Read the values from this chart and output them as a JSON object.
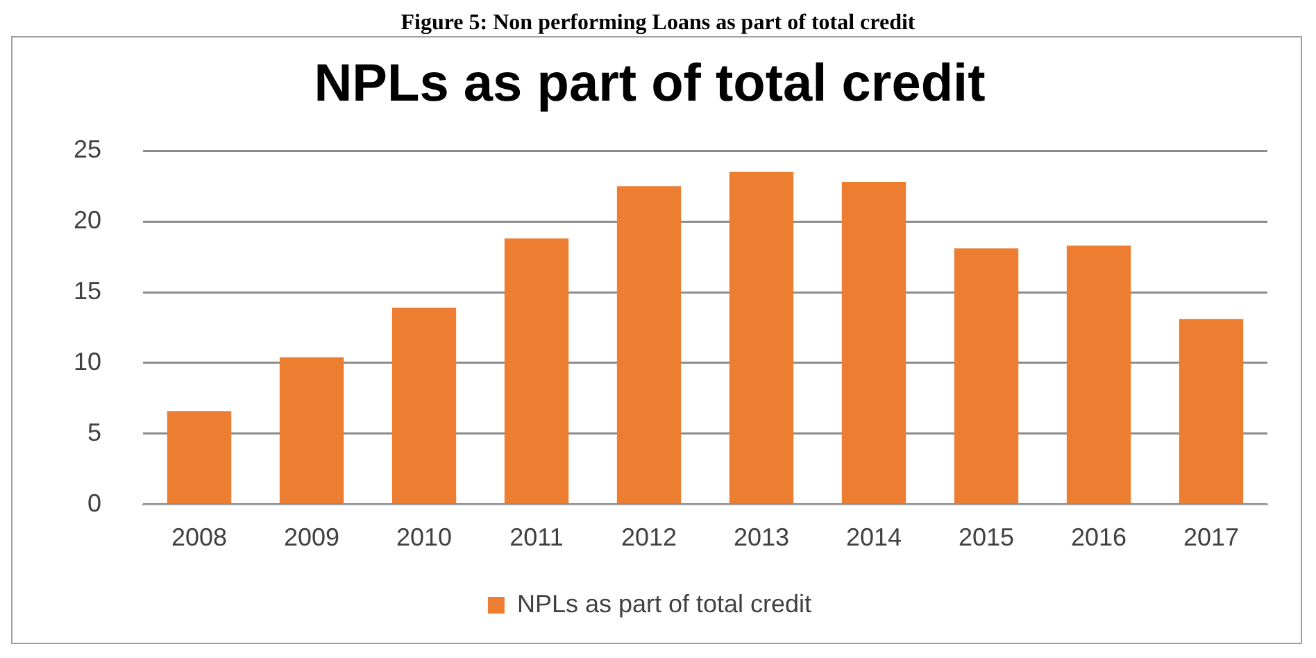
{
  "chart_data": {
    "type": "bar",
    "title": "NPLs as part of total credit",
    "annotations": [
      "Figure 5: Non performing Loans as part of total credit"
    ],
    "categories": [
      "2008",
      "2009",
      "2010",
      "2011",
      "2012",
      "2013",
      "2014",
      "2015",
      "2016",
      "2017"
    ],
    "series": [
      {
        "name": "NPLs as part of total credit",
        "color": "#ed7d31",
        "values": [
          6.6,
          10.4,
          13.9,
          18.8,
          22.5,
          23.5,
          22.8,
          18.1,
          18.3,
          13.1
        ]
      }
    ],
    "ylim": [
      0,
      25
    ],
    "yticks": [
      0,
      5,
      10,
      15,
      20,
      25
    ],
    "grid": "y",
    "legend": "bottom"
  }
}
